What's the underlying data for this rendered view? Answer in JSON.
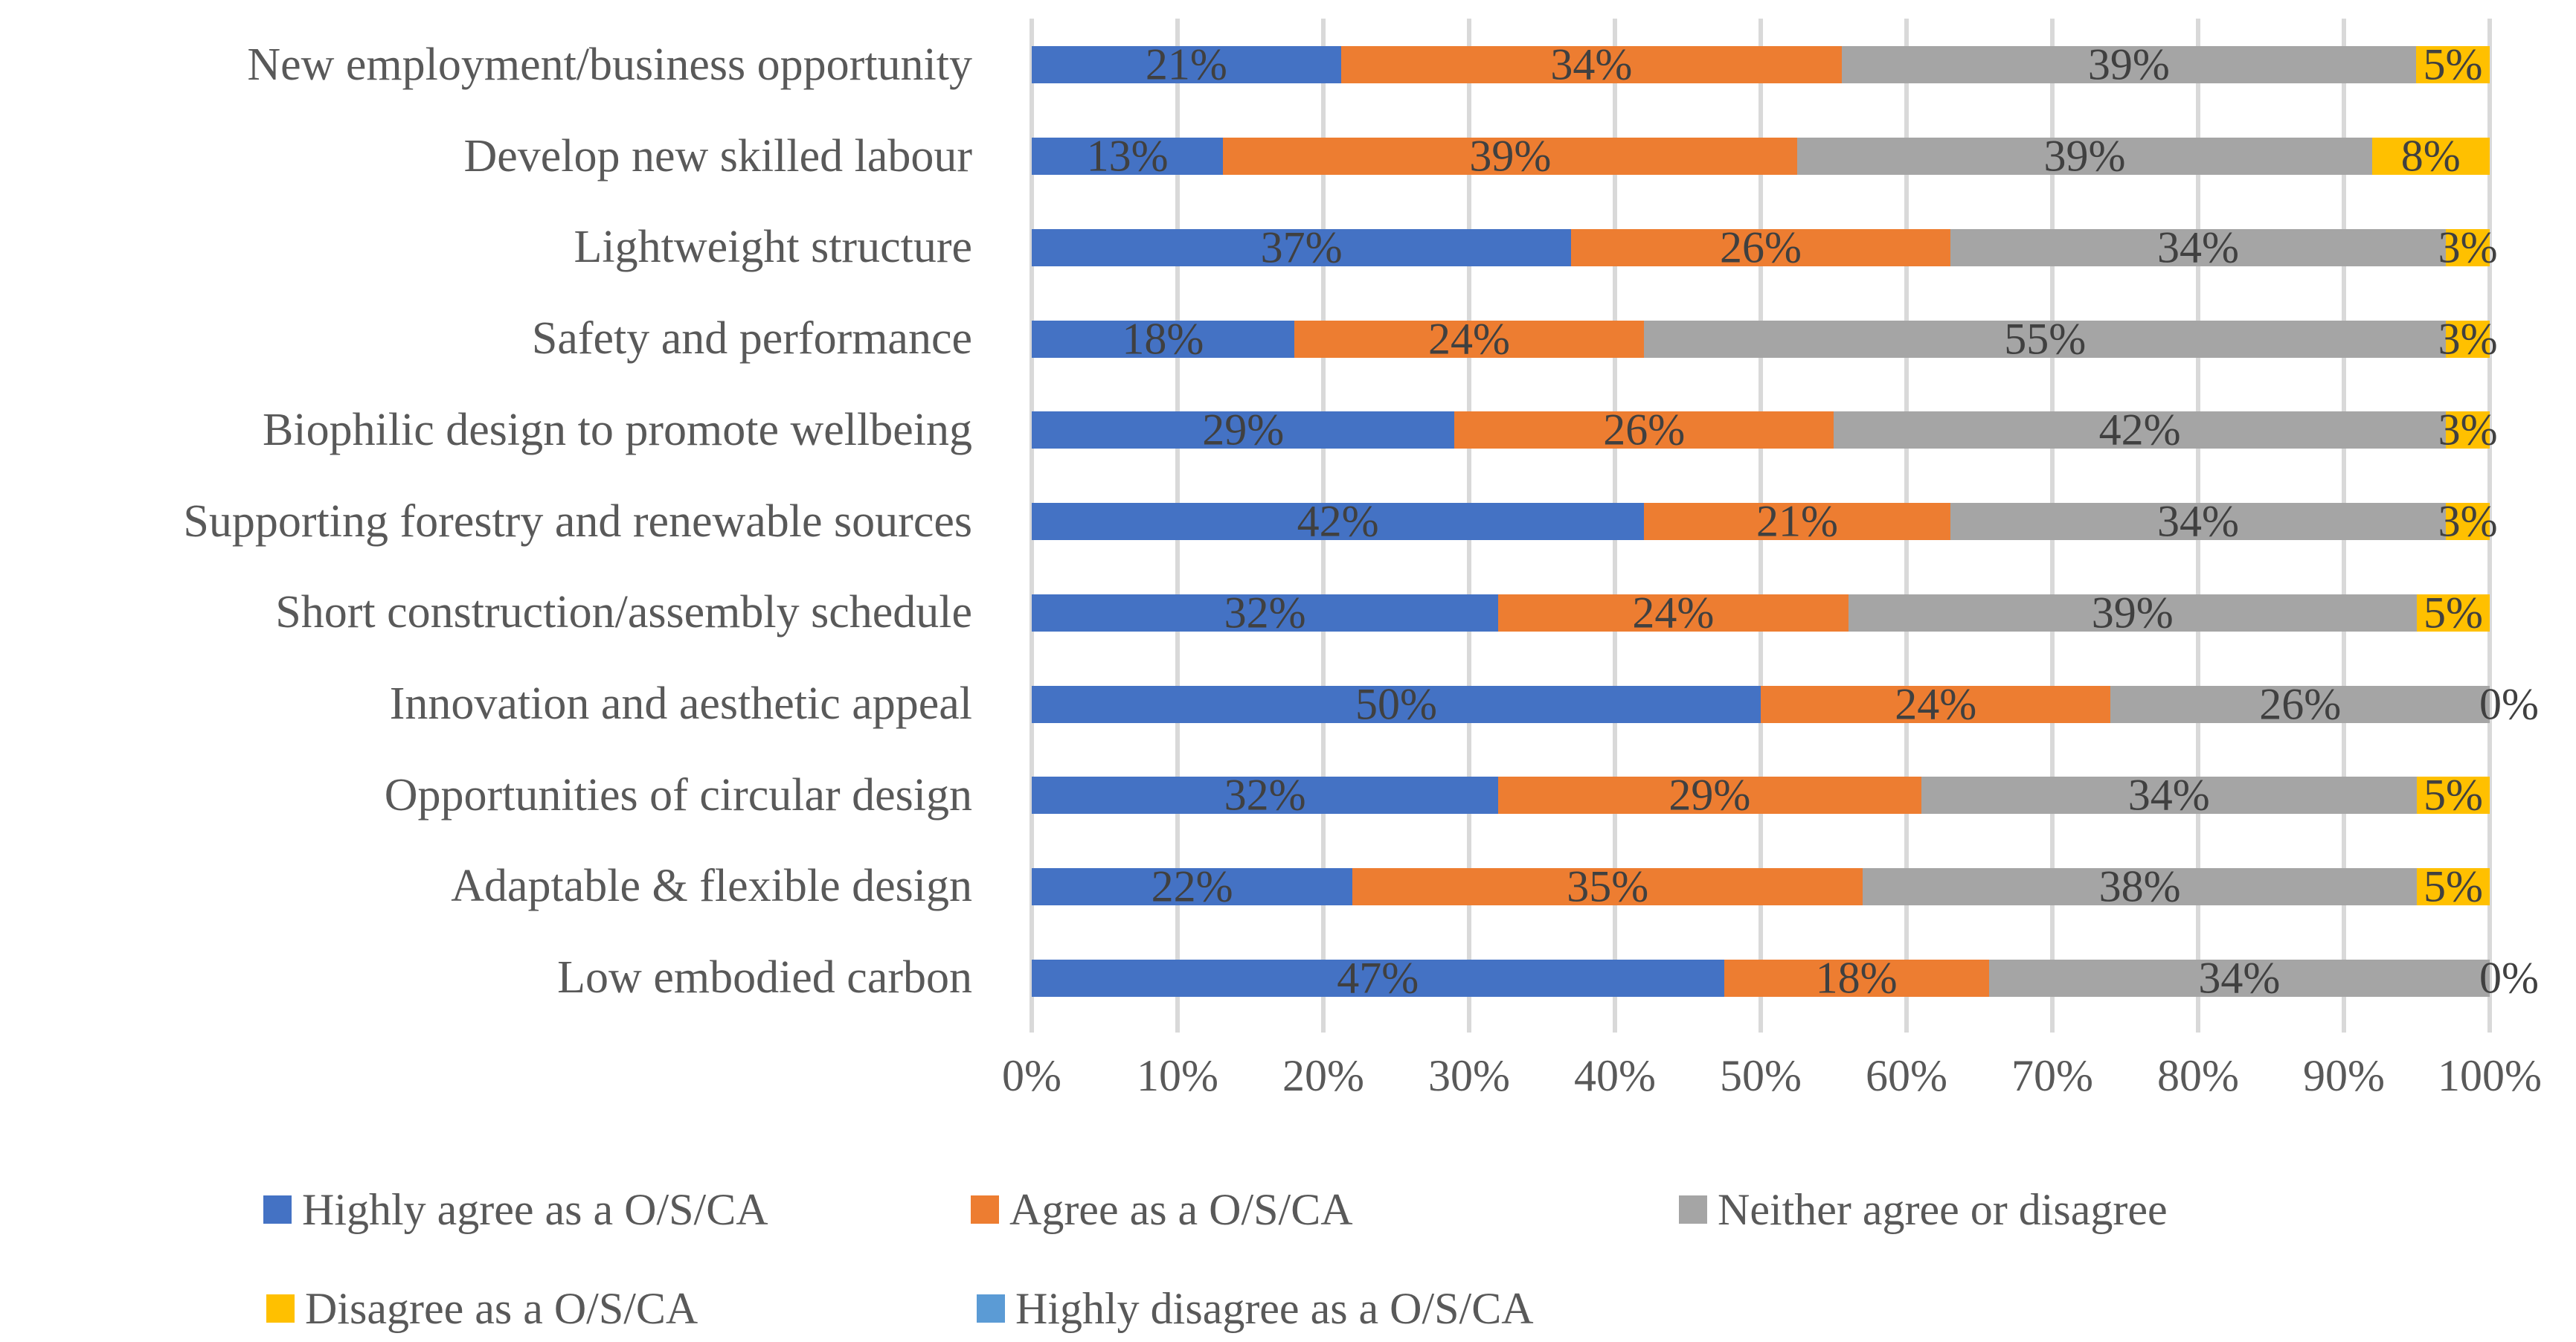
{
  "chart_data": {
    "type": "bar",
    "subtype": "100-percent-stacked-horizontal",
    "title": "",
    "xlabel": "",
    "ylabel": "",
    "xlim": [
      0,
      100
    ],
    "grid": "vertical",
    "gridline_color": "#d9d9d9",
    "label_color": "#595959",
    "data_label_color": "#404040",
    "x_ticks": [
      "0%",
      "10%",
      "20%",
      "30%",
      "40%",
      "50%",
      "60%",
      "70%",
      "80%",
      "90%",
      "100%"
    ],
    "categories": [
      "New employment/business opportunity",
      "Develop new skilled labour",
      "Lightweight structure",
      "Safety and performance",
      "Biophilic design to promote wellbeing",
      "Supporting forestry and renewable sources",
      "Short construction/assembly schedule",
      "Innovation and aesthetic appeal",
      "Opportunities of circular design",
      "Adaptable & flexible design",
      "Low embodied carbon"
    ],
    "series": [
      {
        "name": "Highly agree as a O/S/CA",
        "color": "#4472c4",
        "labeled": true,
        "values": [
          21,
          13,
          37,
          18,
          29,
          42,
          32,
          50,
          32,
          22,
          47
        ]
      },
      {
        "name": "Agree as a O/S/CA",
        "color": "#ed7d31",
        "labeled": true,
        "values": [
          34,
          39,
          26,
          24,
          26,
          21,
          24,
          24,
          29,
          35,
          18
        ]
      },
      {
        "name": "Neither agree or disagree",
        "color": "#a5a5a5",
        "labeled": true,
        "values": [
          39,
          39,
          34,
          55,
          42,
          34,
          39,
          26,
          34,
          38,
          34
        ]
      },
      {
        "name": "Disagree as a O/S/CA",
        "color": "#ffc000",
        "labeled": true,
        "values": [
          5,
          8,
          3,
          3,
          3,
          3,
          5,
          0,
          5,
          5,
          0
        ]
      },
      {
        "name": "Highly disagree as a O/S/CA",
        "color": "#5b9bd5",
        "labeled": false,
        "values": [
          0,
          0,
          0,
          0,
          0,
          0,
          0,
          0,
          0,
          0,
          0
        ]
      }
    ],
    "value_suffix": "%",
    "legend_position": "bottom",
    "legend_rows": [
      [
        0,
        1,
        2
      ],
      [
        3,
        4
      ]
    ]
  }
}
